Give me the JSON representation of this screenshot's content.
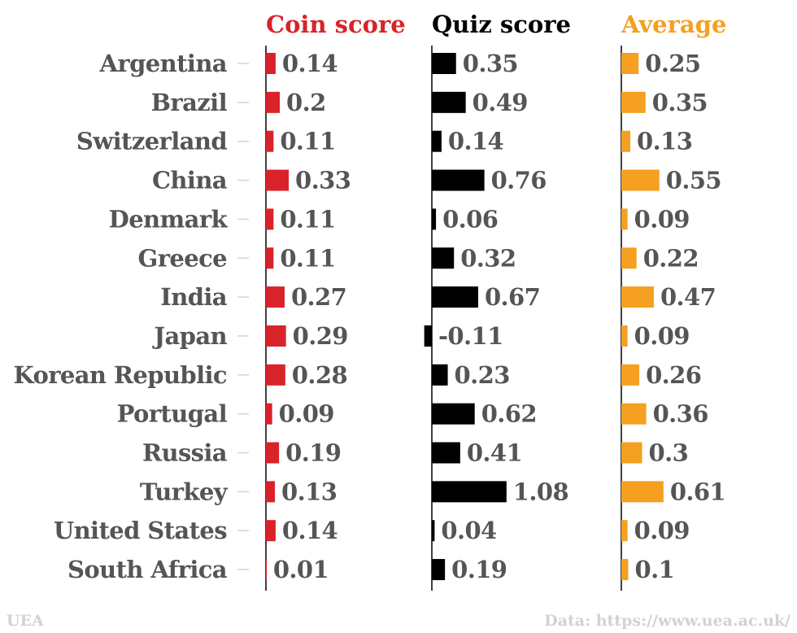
{
  "chart_data": {
    "type": "bar",
    "orientation": "horizontal",
    "categories": [
      "Argentina",
      "Brazil",
      "Switzerland",
      "China",
      "Denmark",
      "Greece",
      "India",
      "Japan",
      "Korean Republic",
      "Portugal",
      "Russia",
      "Turkey",
      "United States",
      "South Africa"
    ],
    "series": [
      {
        "name": "Coin score",
        "color": "#d9232a",
        "values": [
          0.14,
          0.2,
          0.11,
          0.33,
          0.11,
          0.11,
          0.27,
          0.29,
          0.28,
          0.09,
          0.19,
          0.13,
          0.14,
          0.01
        ]
      },
      {
        "name": "Quiz score",
        "color": "#000000",
        "values": [
          0.35,
          0.49,
          0.14,
          0.76,
          0.06,
          0.32,
          0.67,
          -0.11,
          0.23,
          0.62,
          0.41,
          1.08,
          0.04,
          0.19
        ]
      },
      {
        "name": "Average",
        "color": "#f5a020",
        "values": [
          0.25,
          0.35,
          0.13,
          0.55,
          0.09,
          0.22,
          0.47,
          0.09,
          0.26,
          0.36,
          0.3,
          0.61,
          0.09,
          0.1
        ]
      }
    ],
    "label_color": "#555555",
    "grid": false,
    "legend": "column headers"
  },
  "footer": {
    "source_left": "UEA",
    "source_right": "Data: https://www.uea.ac.uk/"
  }
}
